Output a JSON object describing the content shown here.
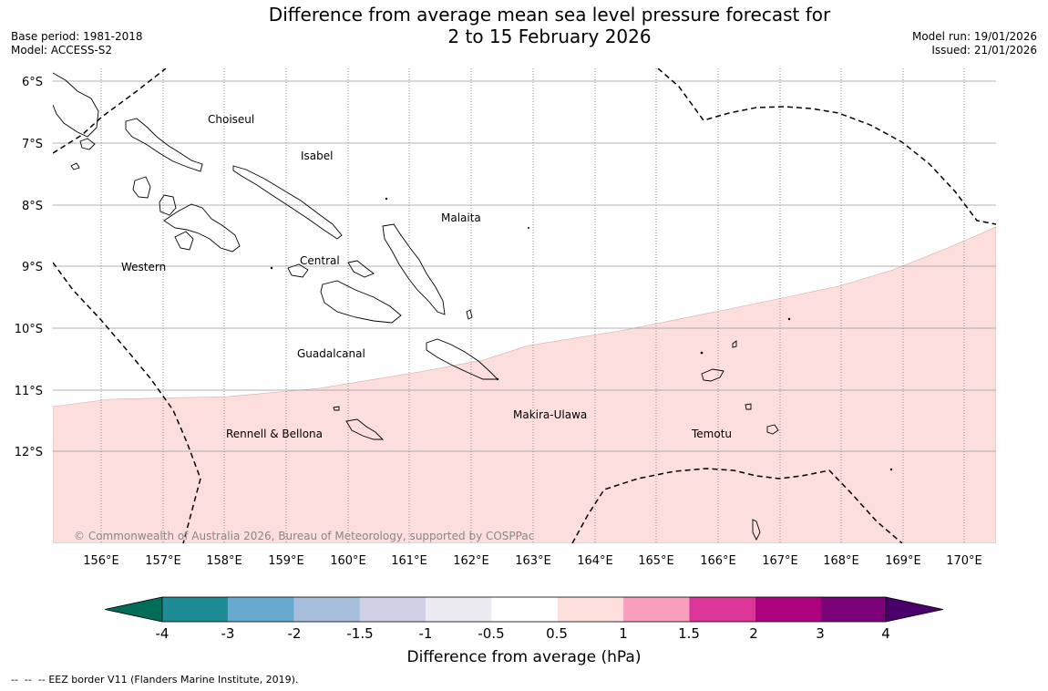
{
  "header": {
    "title_line1": "Difference from average mean sea level pressure forecast for",
    "title_line2": "2 to 15 February 2026",
    "base_period": "Base period: 1981-2018",
    "model": "Model: ACCESS-S2",
    "model_run": "Model run: 19/01/2026",
    "issued": "Issued: 21/01/2026"
  },
  "map": {
    "lat_labels": [
      "6°S",
      "7°S",
      "8°S",
      "9°S",
      "10°S",
      "11°S",
      "12°S"
    ],
    "lon_labels": [
      "156°E",
      "157°E",
      "158°E",
      "159°E",
      "160°E",
      "161°E",
      "162°E",
      "163°E",
      "164°E",
      "165°E",
      "166°E",
      "167°E",
      "168°E",
      "169°E",
      "170°E"
    ],
    "regions": [
      "Choiseul",
      "Isabel",
      "Malaita",
      "Western",
      "Central",
      "Guadalcanal",
      "Makira-Ulawa",
      "Rennell & Bellona",
      "Temotu"
    ],
    "copyright": "© Commonwealth of Australia 2026, Bureau of Meteorology, supported by COSPPac",
    "shade_color": "#fcdedd",
    "shade_range": "0.5 to 1 hPa"
  },
  "colorbar": {
    "tick_labels": [
      "-4",
      "-3",
      "-2",
      "-1.5",
      "-1",
      "-0.5",
      "0.5",
      "1",
      "1.5",
      "2",
      "3",
      "4"
    ],
    "segment_colors": [
      "#1e8c94",
      "#67a9cf",
      "#a6bddb",
      "#d0d1e6",
      "#ecebf2",
      "#ffffff",
      "#fcdedd",
      "#f79fbd",
      "#dd3497",
      "#ae017e",
      "#7a0177"
    ],
    "under_color": "#016c59",
    "over_color": "#49006a",
    "label": "Difference from average (hPa)"
  },
  "footer": {
    "legend_symbol": "--  --  --",
    "legend_text": "EEZ border V11 (Flanders Marine Institute, 2019)."
  }
}
